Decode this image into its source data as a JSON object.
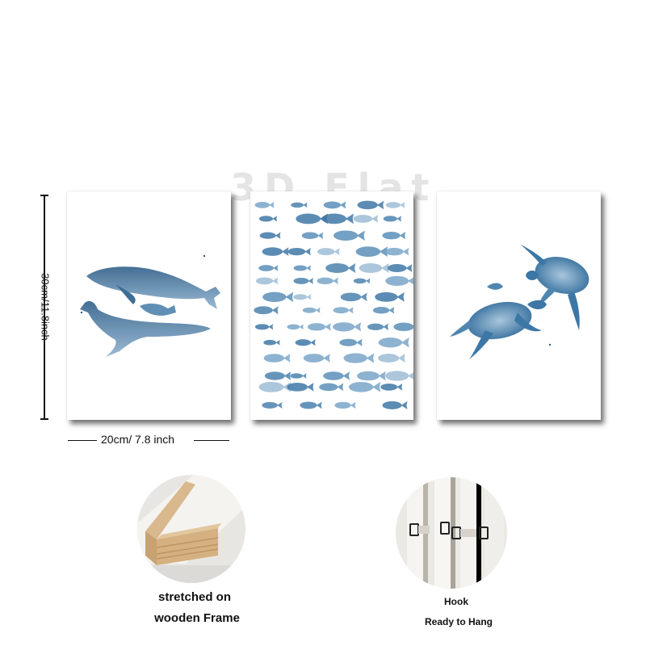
{
  "watermark": "3D Flat",
  "dimensions": {
    "height_label": "30cm/11.8inch",
    "width_label": "20cm/ 7.8 inch"
  },
  "panels": [
    {
      "subject": "whales",
      "icon": "whale-icon"
    },
    {
      "subject": "school of fish",
      "icon": "fish-icon"
    },
    {
      "subject": "sea turtles",
      "icon": "turtle-icon"
    }
  ],
  "details": [
    {
      "caption_line1": "stretched on",
      "caption_line2": "wooden Frame",
      "icon": "wooden-frame-icon"
    },
    {
      "caption_line1": "Hook",
      "caption_line2": "Ready to Hang",
      "icon": "hook-icon"
    }
  ],
  "colors": {
    "ink": "#111111",
    "watercolor_dark": "#2f5f88",
    "watercolor_mid": "#5f8fb5",
    "watercolor_light": "#a9c6dc",
    "wood": "#d9b88d"
  }
}
